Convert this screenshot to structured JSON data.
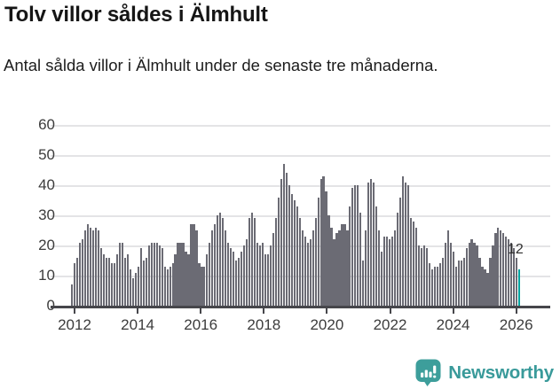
{
  "header": {
    "title": "Tolv villor såldes i Älmhult",
    "subtitle": "Antal sålda villor i Älmhult under de senaste tre månaderna."
  },
  "chart_data": {
    "type": "bar",
    "title": "Tolv villor såldes i Älmhult",
    "subtitle": "Antal sålda villor i Älmhult under de senaste tre månaderna.",
    "frequency": "monthly",
    "x_start": "2011-12",
    "x_end": "2026-01",
    "x_tick_labels": [
      "2012",
      "2014",
      "2016",
      "2018",
      "2020",
      "2022",
      "2024",
      "2026"
    ],
    "y_ticks": [
      0,
      10,
      20,
      30,
      40,
      50,
      60
    ],
    "ylim": [
      0,
      60
    ],
    "grid": true,
    "bar_color": "#6b6b74",
    "values": [
      7,
      14,
      16,
      21,
      22,
      25,
      27,
      26,
      25,
      26,
      25,
      19,
      17,
      16,
      16,
      14,
      14,
      17,
      21,
      21,
      16,
      17,
      12,
      9,
      11,
      13,
      19,
      15,
      16,
      20,
      21,
      21,
      21,
      20,
      19,
      13,
      12,
      13,
      14,
      17,
      21,
      21,
      21,
      18,
      17,
      27,
      27,
      25,
      14,
      13,
      13,
      17,
      21,
      25,
      27,
      30,
      31,
      29,
      25,
      21,
      19,
      18,
      15,
      16,
      18,
      20,
      22,
      29,
      31,
      29,
      21,
      20,
      21,
      17,
      17,
      20,
      24,
      29,
      36,
      42,
      47,
      44,
      40,
      37,
      35,
      33,
      29,
      25,
      23,
      21,
      22,
      25,
      29,
      36,
      42,
      43,
      38,
      30,
      26,
      22,
      24,
      25,
      27,
      27,
      25,
      33,
      39,
      40,
      40,
      31,
      15,
      25,
      41,
      42,
      41,
      33,
      25,
      18,
      23,
      23,
      22,
      23,
      25,
      31,
      36,
      43,
      41,
      40,
      29,
      28,
      26,
      20,
      19,
      20,
      19,
      14,
      12,
      13,
      13,
      14,
      16,
      21,
      25,
      21,
      18,
      13,
      15,
      15,
      16,
      19,
      21,
      22,
      21,
      20,
      16,
      13,
      12,
      11,
      16,
      20,
      24,
      26,
      25,
      24,
      23,
      22,
      21,
      19,
      16,
      12
    ],
    "highlight": {
      "position": "last",
      "value": 12,
      "label": "12",
      "color": "#00a4a0"
    }
  },
  "annotation": {
    "label": "12"
  },
  "footer": {
    "brand": "Newsworthy",
    "brand_color": "#399a9a",
    "icon_color": "#3d9e9b"
  }
}
